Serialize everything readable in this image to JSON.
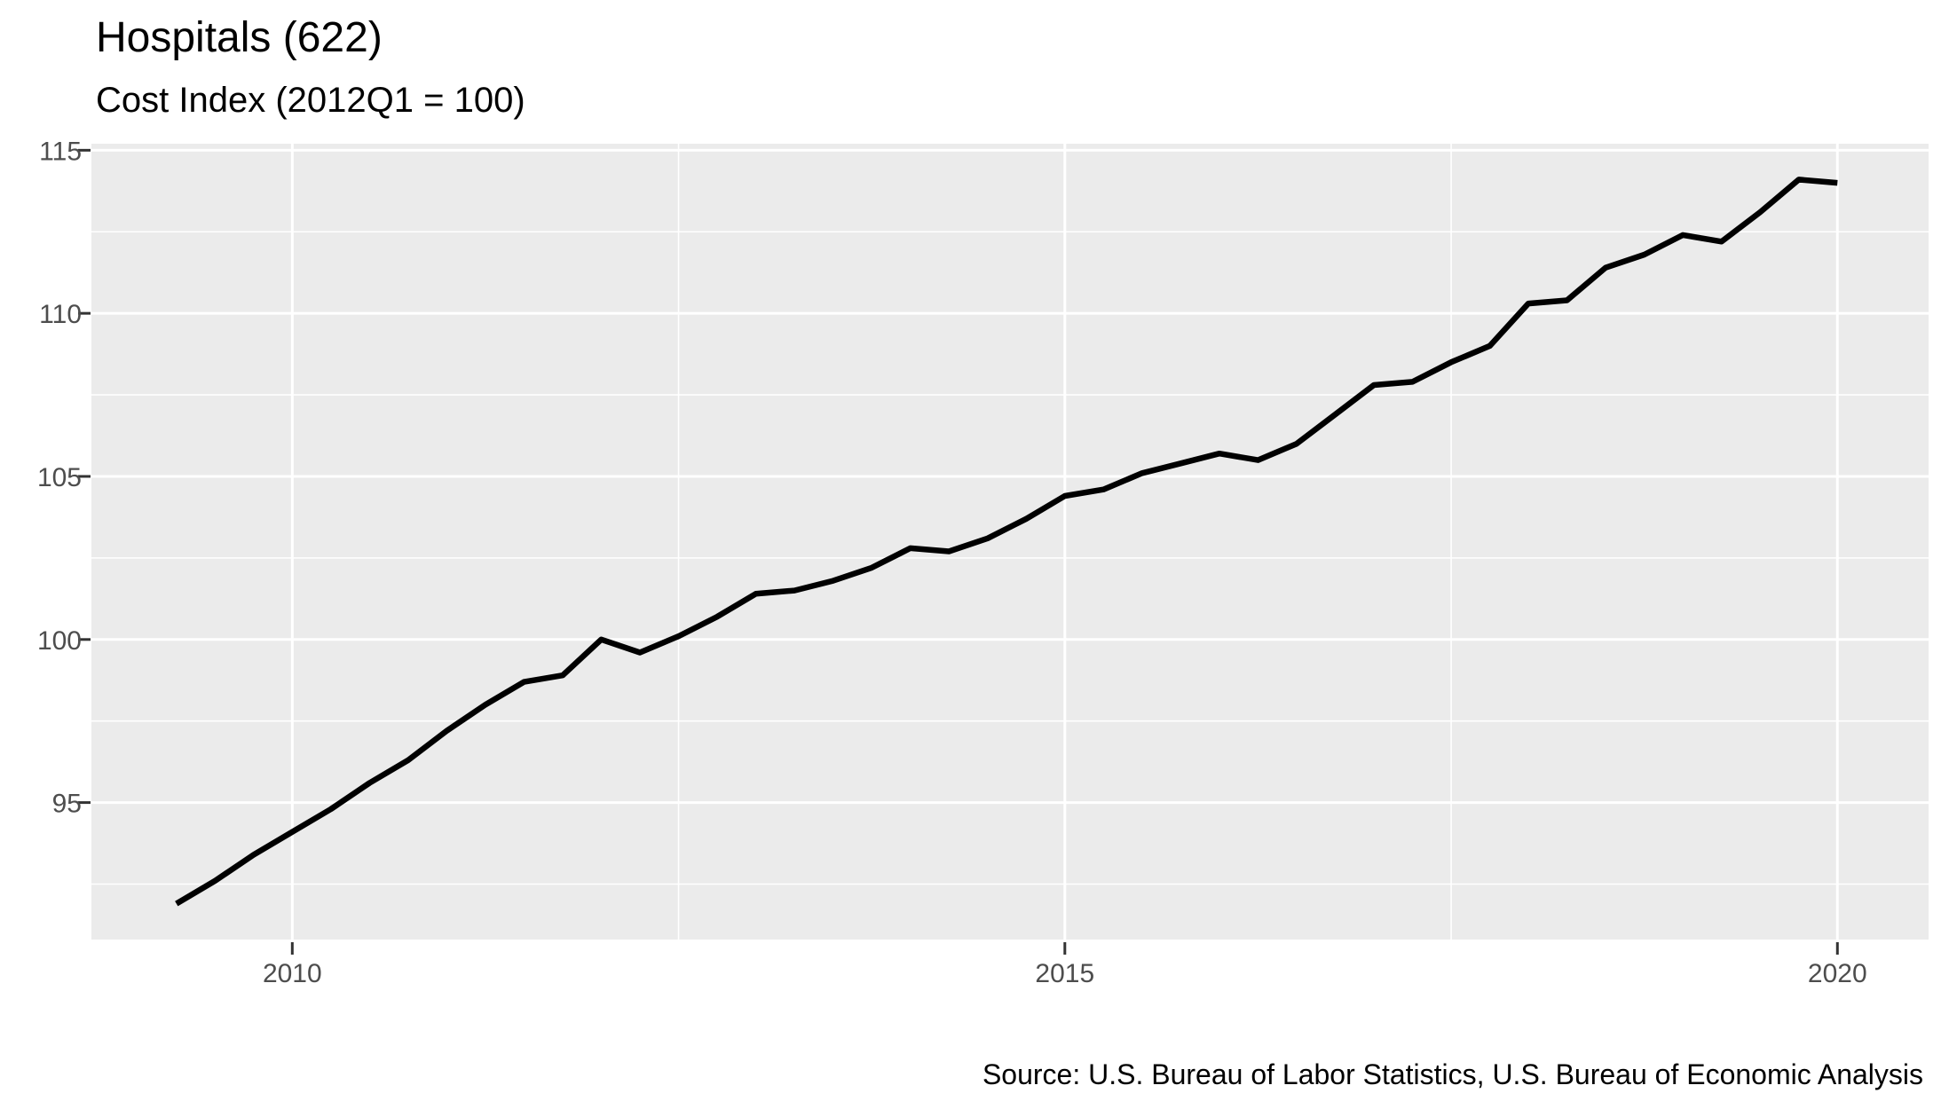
{
  "chart": {
    "title": "Hospitals (622)",
    "subtitle": "Cost Index (2012Q1 = 100)",
    "caption": "Source: U.S. Bureau of Labor Statistics, U.S. Bureau of Economic Analysis"
  },
  "axes": {
    "x": {
      "ticks": [
        {
          "label": "2010",
          "value": 2010
        },
        {
          "label": "2015",
          "value": 2015
        },
        {
          "label": "2020",
          "value": 2020
        }
      ],
      "minor": [
        2012.5,
        2017.5
      ]
    },
    "y": {
      "ticks": [
        {
          "label": "95",
          "value": 95
        },
        {
          "label": "100",
          "value": 100
        },
        {
          "label": "105",
          "value": 105
        },
        {
          "label": "110",
          "value": 110
        },
        {
          "label": "115",
          "value": 115
        }
      ],
      "minor": [
        92.5,
        97.5,
        102.5,
        107.5,
        112.5
      ]
    }
  },
  "chart_data": {
    "type": "line",
    "title": "Hospitals (622)",
    "subtitle": "Cost Index (2012Q1 = 100)",
    "caption": "Source: U.S. Bureau of Labor Statistics, U.S. Bureau of Economic Analysis",
    "xlabel": "",
    "ylabel": "",
    "xlim": [
      2008.7,
      2020.59
    ],
    "ylim": [
      90.8,
      115.2
    ],
    "grid": true,
    "legend_position": "none",
    "x_major_breaks": [
      2010,
      2015,
      2020
    ],
    "x_minor_breaks": [
      2012.5,
      2017.5
    ],
    "y_major_breaks": [
      95,
      100,
      105,
      110,
      115
    ],
    "y_minor_breaks": [
      92.5,
      97.5,
      102.5,
      107.5,
      112.5
    ],
    "line_color": "#000000",
    "panel_bg": "#EBEBEB",
    "grid_color": "#FFFFFF",
    "axis_text_color": "#4D4D4D",
    "quarters": [
      "2009Q2",
      "2009Q3",
      "2009Q4",
      "2010Q1",
      "2010Q2",
      "2010Q3",
      "2010Q4",
      "2011Q1",
      "2011Q2",
      "2011Q3",
      "2011Q4",
      "2012Q1",
      "2012Q2",
      "2012Q3",
      "2012Q4",
      "2013Q1",
      "2013Q2",
      "2013Q3",
      "2013Q4",
      "2014Q1",
      "2014Q2",
      "2014Q3",
      "2014Q4",
      "2015Q1",
      "2015Q2",
      "2015Q3",
      "2015Q4",
      "2016Q1",
      "2016Q2",
      "2016Q3",
      "2016Q4",
      "2017Q1",
      "2017Q2",
      "2017Q3",
      "2017Q4",
      "2018Q1",
      "2018Q2",
      "2018Q3",
      "2018Q4",
      "2019Q1",
      "2019Q2",
      "2019Q3",
      "2019Q4",
      "2020Q1"
    ],
    "x": [
      2009.25,
      2009.5,
      2009.75,
      2010,
      2010.25,
      2010.5,
      2010.75,
      2011,
      2011.25,
      2011.5,
      2011.75,
      2012,
      2012.25,
      2012.5,
      2012.75,
      2013,
      2013.25,
      2013.5,
      2013.75,
      2014,
      2014.25,
      2014.5,
      2014.75,
      2015,
      2015.25,
      2015.5,
      2015.75,
      2016,
      2016.25,
      2016.5,
      2016.75,
      2017,
      2017.25,
      2017.5,
      2017.75,
      2018,
      2018.25,
      2018.5,
      2018.75,
      2019,
      2019.25,
      2019.5,
      2019.75,
      2020
    ],
    "values": [
      91.9,
      92.6,
      93.4,
      94.1,
      94.8,
      95.6,
      96.3,
      97.2,
      98.0,
      98.7,
      98.9,
      100.0,
      99.6,
      100.1,
      100.7,
      101.4,
      101.5,
      101.8,
      102.2,
      102.8,
      102.7,
      103.1,
      103.7,
      104.4,
      104.6,
      105.1,
      105.4,
      105.7,
      105.5,
      106.0,
      106.9,
      107.8,
      107.9,
      108.5,
      109.0,
      110.3,
      110.4,
      111.4,
      111.8,
      112.4,
      112.2,
      113.1,
      114.1,
      114.0
    ],
    "series": [
      {
        "name": "Hospitals (622) cost index",
        "color": "#000000"
      }
    ]
  }
}
